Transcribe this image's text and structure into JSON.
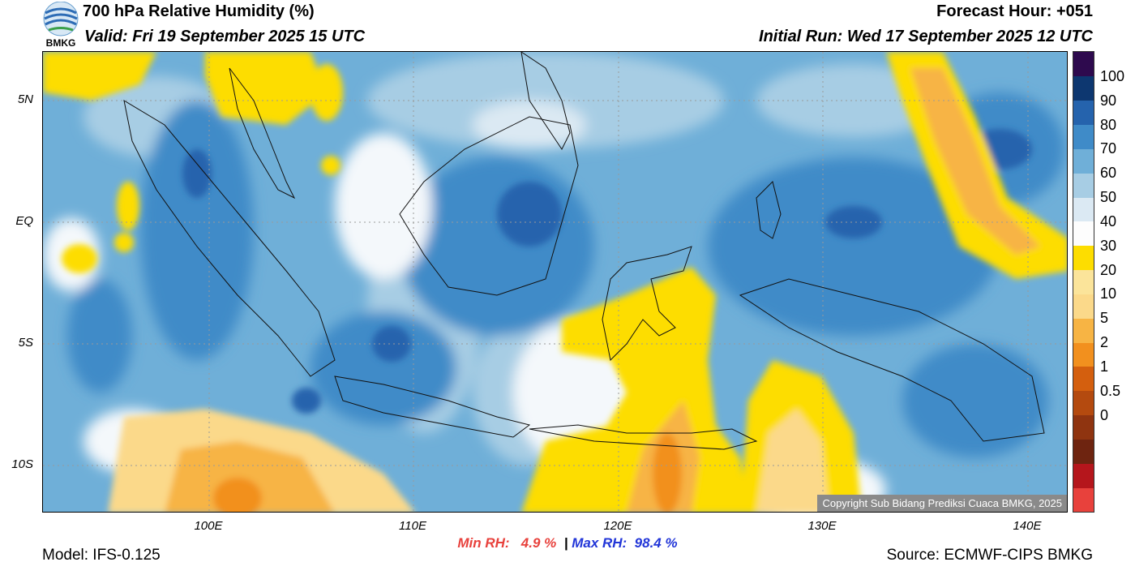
{
  "header": {
    "title": "700 hPa Relative Humidity (%)",
    "valid": "Valid: Fri 19 September 2025 15 UTC",
    "forecast_hour": "Forecast Hour: +051",
    "initial_run": "Initial Run: Wed 17 September 2025 12 UTC",
    "logo_text": "BMKG"
  },
  "map": {
    "lat_labels": [
      "5N",
      "EQ",
      "5S",
      "10S"
    ],
    "lon_labels": [
      "100E",
      "110E",
      "120E",
      "130E",
      "140E"
    ],
    "copyright": "Copyright Sub Bidang Prediksi Cuaca BMKG, 2025"
  },
  "colorbar": {
    "labels": [
      "100",
      "90",
      "80",
      "70",
      "60",
      "50",
      "40",
      "30",
      "20",
      "10",
      "5",
      "2",
      "1",
      "0.5",
      "0"
    ],
    "colors": [
      "#e8413c",
      "#b5161c",
      "#6e2410",
      "#8f3410",
      "#b44a0f",
      "#d45f0e",
      "#f2901e",
      "#f7b444",
      "#fbd98a",
      "#fbe49a",
      "#fddd00",
      "#fdfdfd",
      "#dbe9f3",
      "#a7cde4",
      "#6fafd8",
      "#3f8bc8",
      "#2563ad",
      "#0d3770",
      "#2e0a4e"
    ]
  },
  "footer": {
    "min_label": "Min RH:",
    "min_value": "4.9 %",
    "separator": "|",
    "max_label": "Max RH:",
    "max_value": "98.4 %",
    "model": "Model: IFS-0.125",
    "source": "Source: ECMWF-CIPS BMKG"
  }
}
